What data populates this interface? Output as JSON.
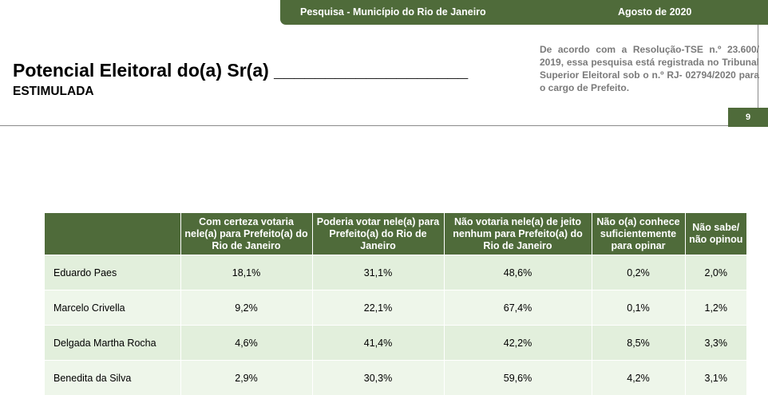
{
  "topbar": {
    "survey": "Pesquisa - Município do Rio de Janeiro",
    "date": "Agosto de 2020"
  },
  "header": {
    "title": "Potencial Eleitoral do(a) Sr(a) ___________________",
    "subtitle": "ESTIMULADA",
    "legal_text": "De acordo com a Resolução-TSE n.º 23.600/ 2019, essa pesquisa está registrada no Tribunal Superior Eleitoral sob o n.º RJ- 02794/2020 para o cargo de Prefeito.",
    "page_number": "9"
  },
  "table": {
    "columns": [
      "",
      "Com certeza votaria nele(a) para Prefeito(a) do Rio de Janeiro",
      "Poderia votar nele(a) para Prefeito(a) do Rio de Janeiro",
      "Não votaria nele(a) de jeito nenhum para Prefeito(a) do Rio de Janeiro",
      "Não o(a) conhece suficientemente para opinar",
      "Não sabe/ não opinou"
    ],
    "rows": [
      {
        "name": "Eduardo Paes",
        "values": [
          "18,1%",
          "31,1%",
          "48,6%",
          "0,2%",
          "2,0%"
        ]
      },
      {
        "name": "Marcelo Crivella",
        "values": [
          "9,2%",
          "22,1%",
          "67,4%",
          "0,1%",
          "1,2%"
        ]
      },
      {
        "name": "Delgada Martha Rocha",
        "values": [
          "4,6%",
          "41,4%",
          "42,2%",
          "8,5%",
          "3,3%"
        ]
      },
      {
        "name": "Benedita da Silva",
        "values": [
          "2,9%",
          "30,3%",
          "59,6%",
          "4,2%",
          "3,1%"
        ]
      }
    ]
  },
  "colors": {
    "brand_green": "#4f6b3a",
    "row_odd": "#e2efdc",
    "row_even": "#eef6ea",
    "legal_gray": "#7a7a7a"
  }
}
